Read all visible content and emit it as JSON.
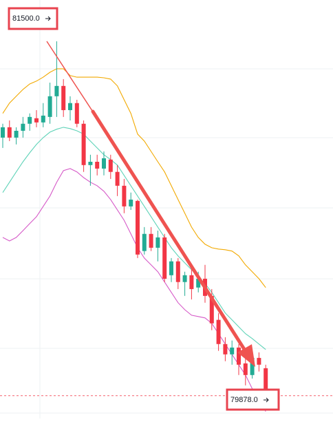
{
  "chart_data": {
    "type": "candlestick",
    "up_color": "#22ab94",
    "down_color": "#f23645",
    "open": [
      81062,
      81109,
      81062,
      81093,
      81125,
      81150,
      81131,
      81156,
      81250,
      81297,
      81187,
      81219,
      81125,
      80937,
      80952,
      80921,
      80962,
      80906,
      80843,
      80749,
      80774,
      80546,
      80624,
      80561,
      80608,
      80436,
      80499,
      80405,
      80436,
      80380,
      80420,
      80342,
      80233,
      80123,
      80076,
      80107,
      80035,
      79982,
      80060,
      80013
    ],
    "high": [
      81125,
      81140,
      81109,
      81156,
      81172,
      81187,
      81219,
      81312,
      81500,
      81328,
      81250,
      81234,
      81140,
      80984,
      80984,
      80999,
      80984,
      80937,
      80874,
      80812,
      80780,
      80655,
      80655,
      80639,
      80624,
      80514,
      80514,
      80452,
      80467,
      80452,
      80483,
      80373,
      80264,
      80154,
      80139,
      80123,
      80060,
      80092,
      80085,
      80029
    ],
    "low": [
      81015,
      81046,
      81031,
      81062,
      81093,
      81109,
      81109,
      81125,
      81156,
      81156,
      81140,
      81109,
      80906,
      80843,
      80890,
      80890,
      80874,
      80796,
      80718,
      80733,
      80514,
      80530,
      80546,
      80499,
      80405,
      80405,
      80373,
      80342,
      80326,
      80358,
      80311,
      80186,
      80092,
      80045,
      80029,
      79982,
      79935,
      79966,
      79998,
      79878
    ],
    "close": [
      81109,
      81062,
      81093,
      81125,
      81156,
      81131,
      81162,
      81250,
      81297,
      81187,
      81219,
      81125,
      80937,
      80952,
      80921,
      80968,
      80906,
      80843,
      80749,
      80780,
      80530,
      80624,
      80561,
      80608,
      80420,
      80499,
      80405,
      80436,
      80373,
      80420,
      80342,
      80217,
      80123,
      80076,
      80107,
      80029,
      79982,
      80060,
      80029,
      79888
    ],
    "bands": [
      {
        "color": "#f2a900",
        "values": [
          81172,
          81219,
          81250,
          81281,
          81306,
          81319,
          81337,
          81359,
          81375,
          81375,
          81344,
          81337,
          81337,
          81337,
          81337,
          81334,
          81328,
          81297,
          81234,
          81172,
          81078,
          81046,
          80999,
          80952,
          80906,
          80843,
          80780,
          80718,
          80655,
          80608,
          80577,
          80561,
          80555,
          80552,
          80546,
          80524,
          80483,
          80452,
          80420,
          80380
        ]
      },
      {
        "color": "#5fd3b8",
        "values": [
          80812,
          80859,
          80906,
          80952,
          80993,
          81031,
          81062,
          81087,
          81100,
          81109,
          81103,
          81093,
          81078,
          81046,
          81015,
          80984,
          80962,
          80937,
          80890,
          80843,
          80796,
          80749,
          80702,
          80655,
          80608,
          80561,
          80524,
          80492,
          80461,
          80430,
          80398,
          80358,
          80311,
          80264,
          80233,
          80201,
          80170,
          80148,
          80123,
          80098
        ]
      },
      {
        "color": "#d65ac8",
        "values": [
          80608,
          80592,
          80608,
          80639,
          80671,
          80702,
          80749,
          80796,
          80859,
          80912,
          80921,
          80906,
          80880,
          80859,
          80843,
          80818,
          80780,
          80733,
          80686,
          80624,
          80561,
          80514,
          80483,
          80452,
          80405,
          80358,
          80311,
          80279,
          80254,
          80248,
          80242,
          80217,
          80170,
          80123,
          80076,
          80029,
          79982,
          79920,
          79873,
          79816
        ]
      }
    ],
    "annotations": [
      {
        "text": "81500.0"
      },
      {
        "text": "79878.0"
      }
    ]
  }
}
